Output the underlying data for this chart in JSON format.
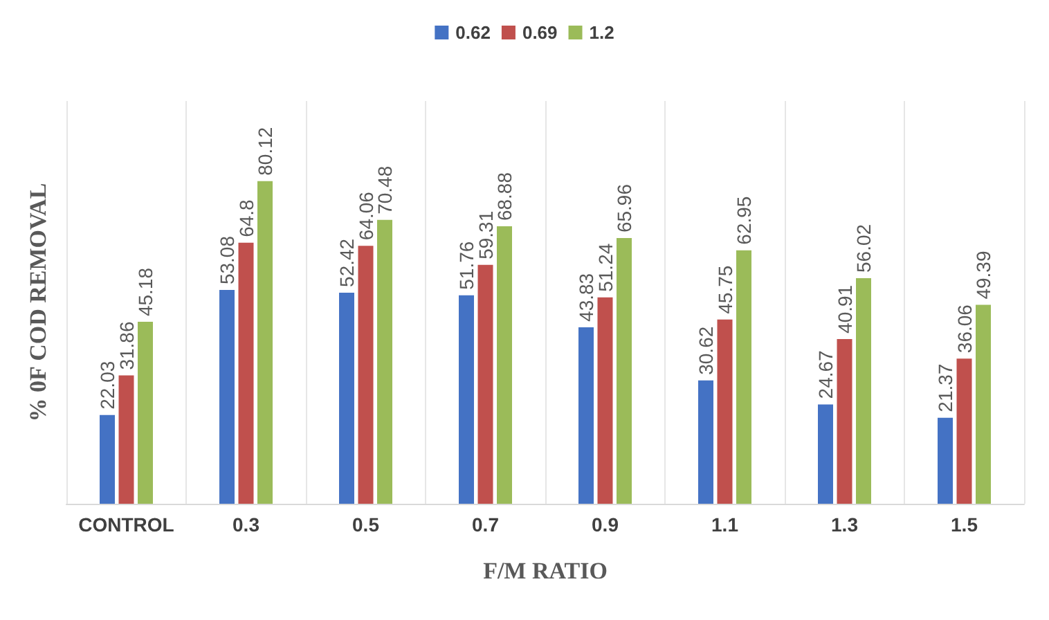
{
  "chart_data": {
    "type": "bar",
    "xlabel": "F/M RATIO",
    "ylabel": "% 0F COD REMOVAL",
    "categories": [
      "CONTROL",
      "0.3",
      "0.5",
      "0.7",
      "0.9",
      "1.1",
      "1.3",
      "1.5"
    ],
    "series": [
      {
        "name": "0.62",
        "color": "#4472c4",
        "values": [
          22.03,
          53.08,
          52.42,
          51.76,
          43.83,
          30.62,
          24.67,
          21.37
        ]
      },
      {
        "name": "0.69",
        "color": "#c0504d",
        "values": [
          31.86,
          64.8,
          64.06,
          59.31,
          51.24,
          45.75,
          40.91,
          36.06
        ]
      },
      {
        "name": "1.2",
        "color": "#9bbb59",
        "values": [
          45.18,
          80.12,
          70.48,
          68.88,
          65.96,
          62.95,
          56.02,
          49.39
        ]
      }
    ],
    "data_labels": true,
    "grid": "x",
    "legend": "top",
    "tick_labels": "x"
  }
}
